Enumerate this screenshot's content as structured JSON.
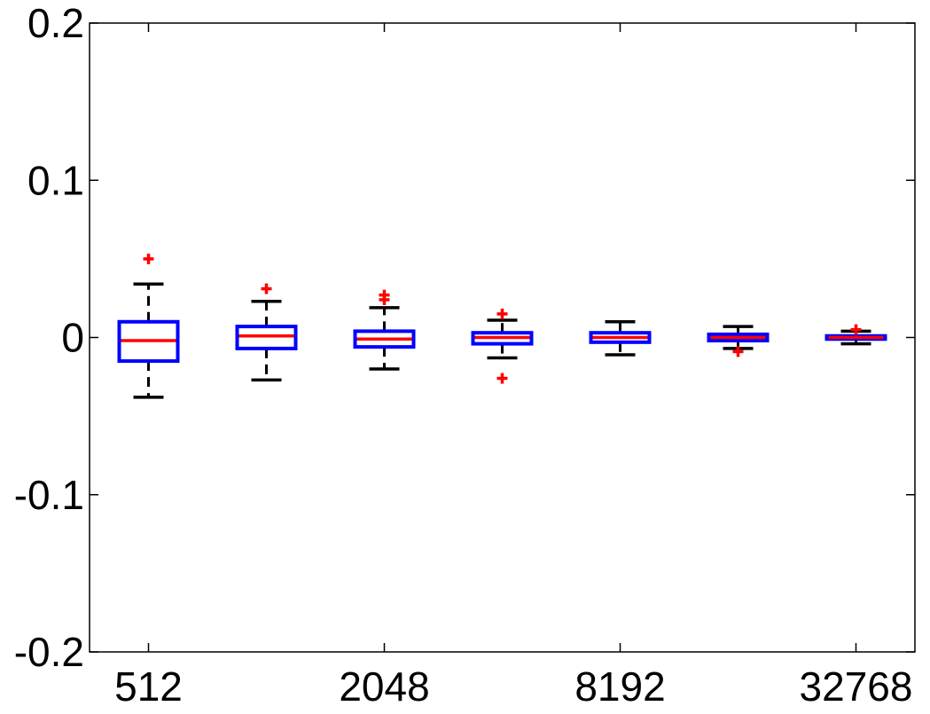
{
  "chart_data": {
    "type": "box",
    "title": "",
    "xlabel": "",
    "ylabel": "",
    "ylim": [
      -0.2,
      0.2
    ],
    "yticks": [
      0.2,
      0.1,
      0,
      -0.1,
      -0.2
    ],
    "ytick_labels": [
      "0.2",
      "0.1",
      "0",
      "-0.1",
      "-0.2"
    ],
    "xtick_labels": [
      "512",
      "2048",
      "8192",
      "32768"
    ],
    "xtick_positions": [
      1,
      3,
      5,
      7
    ],
    "grid": false,
    "colors": {
      "box": "#0000ff",
      "median": "#ff0000",
      "whisker": "#000000",
      "outlier": "#ff0000",
      "axes": "#000000"
    },
    "boxes": [
      {
        "position": 1,
        "q1": -0.015,
        "median": -0.002,
        "q3": 0.01,
        "whisker_low": -0.038,
        "whisker_high": 0.034,
        "outliers": [
          0.05
        ]
      },
      {
        "position": 2,
        "q1": -0.007,
        "median": 0.001,
        "q3": 0.007,
        "whisker_low": -0.027,
        "whisker_high": 0.023,
        "outliers": [
          0.031
        ]
      },
      {
        "position": 3,
        "q1": -0.006,
        "median": -0.001,
        "q3": 0.004,
        "whisker_low": -0.02,
        "whisker_high": 0.019,
        "outliers": [
          0.024,
          0.027
        ]
      },
      {
        "position": 4,
        "q1": -0.004,
        "median": 0.0,
        "q3": 0.003,
        "whisker_low": -0.013,
        "whisker_high": 0.011,
        "outliers": [
          0.015,
          -0.026
        ]
      },
      {
        "position": 5,
        "q1": -0.003,
        "median": 0.0,
        "q3": 0.003,
        "whisker_low": -0.011,
        "whisker_high": 0.01,
        "outliers": []
      },
      {
        "position": 6,
        "q1": -0.002,
        "median": 0.0,
        "q3": 0.002,
        "whisker_low": -0.007,
        "whisker_high": 0.007,
        "outliers": [
          -0.009
        ]
      },
      {
        "position": 7,
        "q1": -0.001,
        "median": 0.0,
        "q3": 0.001,
        "whisker_low": -0.004,
        "whisker_high": 0.004,
        "outliers": [
          0.005
        ]
      }
    ]
  }
}
